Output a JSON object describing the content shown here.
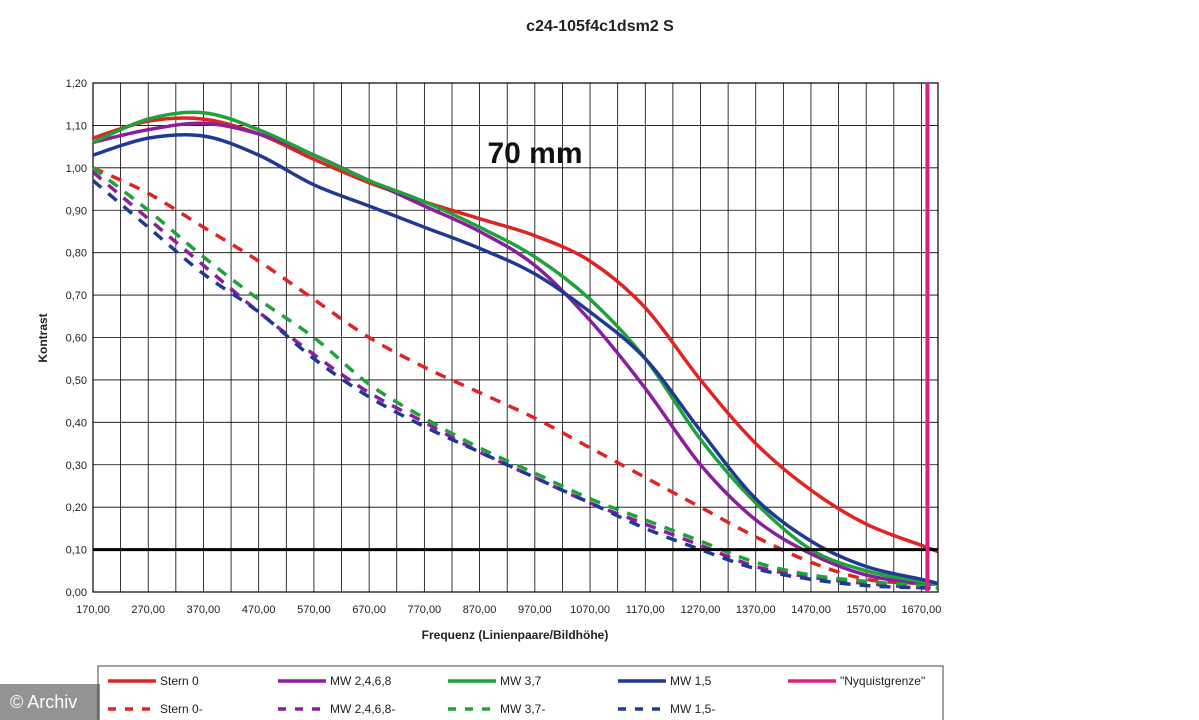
{
  "watermark": "© Archiv",
  "chart_data": {
    "type": "line",
    "title": "c24-105f4c1dsm2 S",
    "annotation": "70 mm",
    "xlabel": "Frequenz (Linienpaare/Bildhöhe)",
    "ylabel": "Kontrast",
    "xlim": [
      170,
      1700
    ],
    "ylim": [
      0,
      1.2
    ],
    "x_ticks": [
      170,
      270,
      370,
      470,
      570,
      670,
      770,
      870,
      970,
      1070,
      1170,
      1270,
      1370,
      1470,
      1570,
      1670
    ],
    "x_tick_labels": [
      "170,00",
      "270,00",
      "370,00",
      "470,00",
      "570,00",
      "670,00",
      "770,00",
      "870,00",
      "970,00",
      "1070,00",
      "1170,00",
      "1270,00",
      "1370,00",
      "1470,00",
      "1570,00",
      "1670,00"
    ],
    "y_ticks": [
      0,
      0.1,
      0.2,
      0.3,
      0.4,
      0.5,
      0.6,
      0.7,
      0.8,
      0.9,
      1.0,
      1.1,
      1.2
    ],
    "y_tick_labels": [
      "0,00",
      "0,10",
      "0,20",
      "0,30",
      "0,40",
      "0,50",
      "0,60",
      "0,70",
      "0,80",
      "0,90",
      "1,00",
      "1,10",
      "1,20"
    ],
    "grid": true,
    "reference_line": {
      "y": 0.1,
      "color": "#000000"
    },
    "nyquist": {
      "x": 1670,
      "label": "\"Nyquistgrenze\"",
      "color": "#e0207f"
    },
    "series": [
      {
        "name": "Stern 0",
        "color": "#e02424",
        "dash": false,
        "x": [
          170,
          270,
          370,
          470,
          570,
          670,
          770,
          870,
          970,
          1070,
          1170,
          1270,
          1370,
          1470,
          1570,
          1670,
          1700
        ],
        "y": [
          1.07,
          1.11,
          1.115,
          1.08,
          1.02,
          0.965,
          0.92,
          0.88,
          0.84,
          0.78,
          0.67,
          0.5,
          0.35,
          0.24,
          0.16,
          0.11,
          0.095
        ]
      },
      {
        "name": "Stern 0-",
        "color": "#e02424",
        "dash": true,
        "x": [
          170,
          270,
          370,
          470,
          570,
          670,
          770,
          870,
          970,
          1070,
          1170,
          1270,
          1370,
          1470,
          1570,
          1670,
          1700
        ],
        "y": [
          1.0,
          0.94,
          0.86,
          0.78,
          0.69,
          0.6,
          0.53,
          0.47,
          0.41,
          0.34,
          0.27,
          0.2,
          0.13,
          0.07,
          0.03,
          0.02,
          0.02
        ]
      },
      {
        "name": "MW 2,4,6,8",
        "color": "#8b1e9e",
        "dash": false,
        "x": [
          170,
          270,
          370,
          470,
          570,
          670,
          770,
          870,
          970,
          1070,
          1170,
          1270,
          1370,
          1470,
          1570,
          1670,
          1700
        ],
        "y": [
          1.06,
          1.09,
          1.105,
          1.08,
          1.03,
          0.97,
          0.91,
          0.85,
          0.77,
          0.64,
          0.48,
          0.3,
          0.17,
          0.09,
          0.04,
          0.02,
          0.02
        ]
      },
      {
        "name": "MW 2,4,6,8-",
        "color": "#8b1e9e",
        "dash": true,
        "x": [
          170,
          270,
          370,
          470,
          570,
          670,
          770,
          870,
          970,
          1070,
          1170,
          1270,
          1370,
          1470,
          1570,
          1670,
          1700
        ],
        "y": [
          0.99,
          0.88,
          0.77,
          0.66,
          0.56,
          0.47,
          0.4,
          0.33,
          0.27,
          0.21,
          0.16,
          0.11,
          0.06,
          0.035,
          0.02,
          0.01,
          0.01
        ]
      },
      {
        "name": "MW 3,7",
        "color": "#1fa23a",
        "dash": false,
        "x": [
          170,
          270,
          370,
          470,
          570,
          670,
          770,
          870,
          970,
          1070,
          1170,
          1270,
          1370,
          1470,
          1570,
          1670,
          1700
        ],
        "y": [
          1.06,
          1.115,
          1.13,
          1.09,
          1.03,
          0.97,
          0.92,
          0.86,
          0.79,
          0.69,
          0.55,
          0.36,
          0.21,
          0.1,
          0.05,
          0.025,
          0.02
        ]
      },
      {
        "name": "MW 3,7-",
        "color": "#1fa23a",
        "dash": true,
        "x": [
          170,
          270,
          370,
          470,
          570,
          670,
          770,
          870,
          970,
          1070,
          1170,
          1270,
          1370,
          1470,
          1570,
          1670,
          1700
        ],
        "y": [
          1.0,
          0.9,
          0.79,
          0.69,
          0.6,
          0.49,
          0.41,
          0.34,
          0.28,
          0.22,
          0.17,
          0.12,
          0.07,
          0.04,
          0.025,
          0.015,
          0.01
        ]
      },
      {
        "name": "MW 1,5",
        "color": "#1f3a94",
        "dash": false,
        "x": [
          170,
          270,
          370,
          470,
          570,
          670,
          770,
          870,
          970,
          1070,
          1170,
          1270,
          1370,
          1470,
          1570,
          1670,
          1700
        ],
        "y": [
          1.03,
          1.07,
          1.075,
          1.03,
          0.96,
          0.91,
          0.86,
          0.81,
          0.75,
          0.66,
          0.55,
          0.38,
          0.22,
          0.12,
          0.06,
          0.03,
          0.02
        ]
      },
      {
        "name": "MW 1,5-",
        "color": "#1f3a94",
        "dash": true,
        "x": [
          170,
          270,
          370,
          470,
          570,
          670,
          770,
          870,
          970,
          1070,
          1170,
          1270,
          1370,
          1470,
          1570,
          1670,
          1700
        ],
        "y": [
          0.97,
          0.86,
          0.75,
          0.66,
          0.55,
          0.46,
          0.39,
          0.33,
          0.27,
          0.21,
          0.15,
          0.1,
          0.055,
          0.03,
          0.015,
          0.01,
          0.01
        ]
      }
    ],
    "legend": {
      "placement": "bottom",
      "rows": [
        [
          {
            "label": "Stern 0",
            "color": "#e02424",
            "dash": false
          },
          {
            "label": "MW 2,4,6,8",
            "color": "#8b1e9e",
            "dash": false
          },
          {
            "label": "MW 3,7",
            "color": "#1fa23a",
            "dash": false
          },
          {
            "label": "MW 1,5",
            "color": "#1f3a94",
            "dash": false
          },
          {
            "label": "\"Nyquistgrenze\"",
            "color": "#e0207f",
            "dash": false
          }
        ],
        [
          {
            "label": "Stern 0-",
            "color": "#e02424",
            "dash": true
          },
          {
            "label": "MW 2,4,6,8-",
            "color": "#8b1e9e",
            "dash": true
          },
          {
            "label": "MW 3,7-",
            "color": "#1fa23a",
            "dash": true
          },
          {
            "label": "MW 1,5-",
            "color": "#1f3a94",
            "dash": true
          }
        ]
      ]
    }
  }
}
